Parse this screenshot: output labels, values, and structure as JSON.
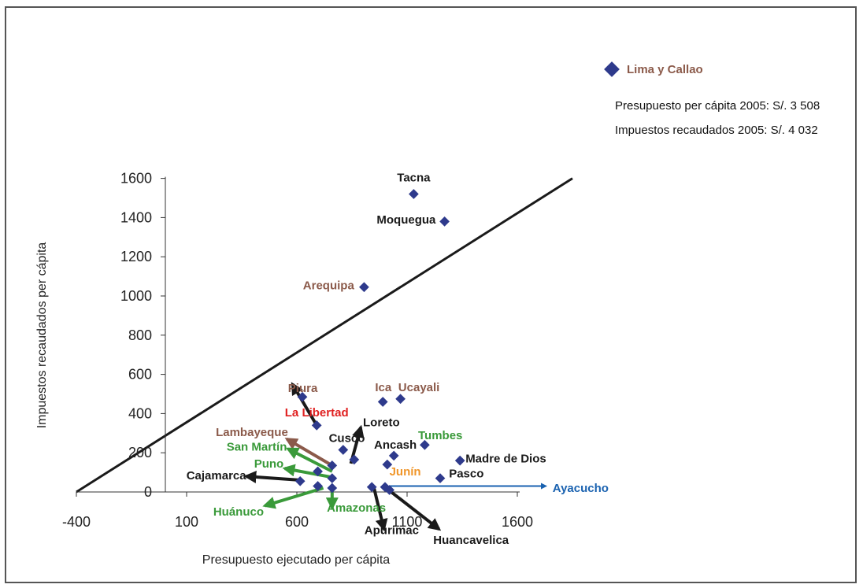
{
  "chart_data": {
    "type": "scatter",
    "xlabel": "Presupuesto ejecutado per cápita",
    "ylabel": "Impuestos recaudados per cápita",
    "xlim": [
      -400,
      1700
    ],
    "ylim": [
      0,
      1600
    ],
    "x_ticks": [
      -400,
      100,
      600,
      1100,
      1600
    ],
    "y_ticks": [
      0,
      200,
      400,
      600,
      800,
      1000,
      1200,
      1400,
      1600
    ],
    "grid": false,
    "colors": {
      "marker": "#2e3a8c",
      "black": "#1a1a1a",
      "brown": "#8b5a4a",
      "red": "#e02020",
      "green": "#3a9a3a",
      "orange": "#f0962a",
      "blue": "#1a62b0",
      "line": "#1a1a1a"
    },
    "reference_line": {
      "x": [
        -400,
        1850
      ],
      "y": [
        0,
        1600
      ]
    },
    "points": [
      {
        "name": "Tacna",
        "x": 1130,
        "y": 1520,
        "color": "black"
      },
      {
        "name": "Moquegua",
        "x": 1270,
        "y": 1380,
        "color": "black"
      },
      {
        "name": "Arequipa",
        "x": 905,
        "y": 1045,
        "color": "brown"
      },
      {
        "name": "Piura",
        "x": 625,
        "y": 485,
        "color": "brown"
      },
      {
        "name": "Ica",
        "x": 990,
        "y": 460,
        "color": "brown"
      },
      {
        "name": "Ucayali",
        "x": 1070,
        "y": 475,
        "color": "brown"
      },
      {
        "name": "La Libertad",
        "x": 690,
        "y": 340,
        "color": "red"
      },
      {
        "name": "Cusco",
        "x": 810,
        "y": 215,
        "color": "black"
      },
      {
        "name": "Loreto",
        "x": 860,
        "y": 165,
        "color": "black"
      },
      {
        "name": "Ancash",
        "x": 1040,
        "y": 185,
        "color": "black"
      },
      {
        "name": "Tumbes",
        "x": 1180,
        "y": 240,
        "color": "green"
      },
      {
        "name": "Madre de Dios",
        "x": 1340,
        "y": 160,
        "color": "black"
      },
      {
        "name": "Pasco",
        "x": 1250,
        "y": 70,
        "color": "black"
      },
      {
        "name": "Junín",
        "x": 1010,
        "y": 140,
        "color": "orange"
      },
      {
        "name": "Lambayeque",
        "x": 760,
        "y": 135,
        "color": "brown"
      },
      {
        "name": "San Martín",
        "x": 695,
        "y": 105,
        "color": "green"
      },
      {
        "name": "Puno",
        "x": 760,
        "y": 70,
        "color": "green"
      },
      {
        "name": "Cajamarca",
        "x": 615,
        "y": 55,
        "color": "black"
      },
      {
        "name": "Huánuco",
        "x": 695,
        "y": 30,
        "color": "green"
      },
      {
        "name": "Amazonas",
        "x": 760,
        "y": 20,
        "color": "green"
      },
      {
        "name": "Apurímac",
        "x": 940,
        "y": 25,
        "color": "black"
      },
      {
        "name": "Huancavelica",
        "x": 1000,
        "y": 25,
        "color": "black"
      },
      {
        "name": "Ayacucho",
        "x": 1020,
        "y": 10,
        "color": "blue"
      }
    ],
    "arrows": [
      {
        "from": [
          690,
          340
        ],
        "to": [
          580,
          550
        ],
        "color": "black"
      },
      {
        "from": [
          760,
          135
        ],
        "to": [
          555,
          270
        ],
        "color": "brown"
      },
      {
        "from": [
          760,
          105
        ],
        "to": [
          560,
          220
        ],
        "color": "green"
      },
      {
        "from": [
          760,
          75
        ],
        "to": [
          545,
          120
        ],
        "color": "green"
      },
      {
        "from": [
          620,
          60
        ],
        "to": [
          370,
          80
        ],
        "color": "black"
      },
      {
        "from": [
          720,
          20
        ],
        "to": [
          455,
          -70
        ],
        "color": "green"
      },
      {
        "from": [
          760,
          20
        ],
        "to": [
          760,
          -80
        ],
        "color": "green"
      },
      {
        "from": [
          950,
          20
        ],
        "to": [
          995,
          -190
        ],
        "color": "black"
      },
      {
        "from": [
          1005,
          20
        ],
        "to": [
          1245,
          -190
        ],
        "color": "black"
      },
      {
        "from": [
          1020,
          30
        ],
        "to": [
          1730,
          30
        ],
        "color": "blue"
      },
      {
        "from": [
          845,
          145
        ],
        "to": [
          890,
          330
        ],
        "color": "black"
      }
    ],
    "labels": [
      {
        "text": "Tacna",
        "x": 1130,
        "y": 1585,
        "color": "black",
        "anchor": "middle"
      },
      {
        "text": "Moquegua",
        "x": 1230,
        "y": 1370,
        "color": "black",
        "anchor": "end"
      },
      {
        "text": "Arequipa",
        "x": 860,
        "y": 1035,
        "color": "brown",
        "anchor": "end"
      },
      {
        "text": "Piura",
        "x": 560,
        "y": 510,
        "color": "brown",
        "anchor": "start"
      },
      {
        "text": "Ica",
        "x": 955,
        "y": 515,
        "color": "brown",
        "anchor": "start"
      },
      {
        "text": "Ucayali",
        "x": 1060,
        "y": 515,
        "color": "brown",
        "anchor": "start"
      },
      {
        "text": "La Libertad",
        "x": 690,
        "y": 385,
        "color": "red",
        "anchor": "middle"
      },
      {
        "text": "Lambayeque",
        "x": 560,
        "y": 285,
        "color": "brown",
        "anchor": "end"
      },
      {
        "text": "Cusco",
        "x": 745,
        "y": 255,
        "color": "black",
        "anchor": "start"
      },
      {
        "text": "Loreto",
        "x": 900,
        "y": 335,
        "color": "black",
        "anchor": "start"
      },
      {
        "text": "Ancash",
        "x": 950,
        "y": 220,
        "color": "black",
        "anchor": "start"
      },
      {
        "text": "Tumbes",
        "x": 1150,
        "y": 270,
        "color": "green",
        "anchor": "start"
      },
      {
        "text": "San Martín",
        "x": 555,
        "y": 210,
        "color": "green",
        "anchor": "end"
      },
      {
        "text": "Madre de Dios",
        "x": 1365,
        "y": 150,
        "color": "black",
        "anchor": "start"
      },
      {
        "text": "Puno",
        "x": 540,
        "y": 125,
        "color": "green",
        "anchor": "end"
      },
      {
        "text": "Junín",
        "x": 1020,
        "y": 85,
        "color": "orange",
        "anchor": "start"
      },
      {
        "text": "Pasco",
        "x": 1290,
        "y": 75,
        "color": "black",
        "anchor": "start"
      },
      {
        "text": "Cajamarca",
        "x": 370,
        "y": 65,
        "color": "black",
        "anchor": "end"
      },
      {
        "text": "Ayacucho",
        "x": 1760,
        "y": 0,
        "color": "blue",
        "anchor": "start"
      },
      {
        "text": "Huánuco",
        "x": 450,
        "y": -120,
        "color": "green",
        "anchor": "end"
      },
      {
        "text": "Amazonas",
        "x": 870,
        "y": -100,
        "color": "green",
        "anchor": "middle"
      },
      {
        "text": "Apurímac",
        "x": 1030,
        "y": -215,
        "color": "black",
        "anchor": "middle"
      },
      {
        "text": "Huancavelica",
        "x": 1390,
        "y": -265,
        "color": "black",
        "anchor": "middle"
      }
    ],
    "outlier": {
      "name": "Lima y Callao",
      "color": "brown",
      "notes": [
        "Presupuesto per cápita 2005: S/. 3 508",
        "Impuestos recaudados 2005: S/. 4 032"
      ]
    }
  }
}
